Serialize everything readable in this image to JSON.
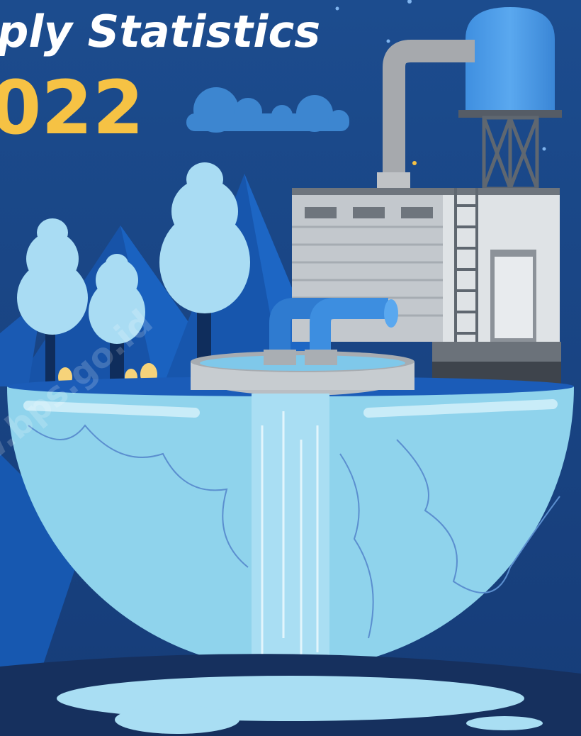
{
  "header": {
    "title": "ply Statistics",
    "year": "022"
  },
  "watermark": "w.bps.go.id"
}
